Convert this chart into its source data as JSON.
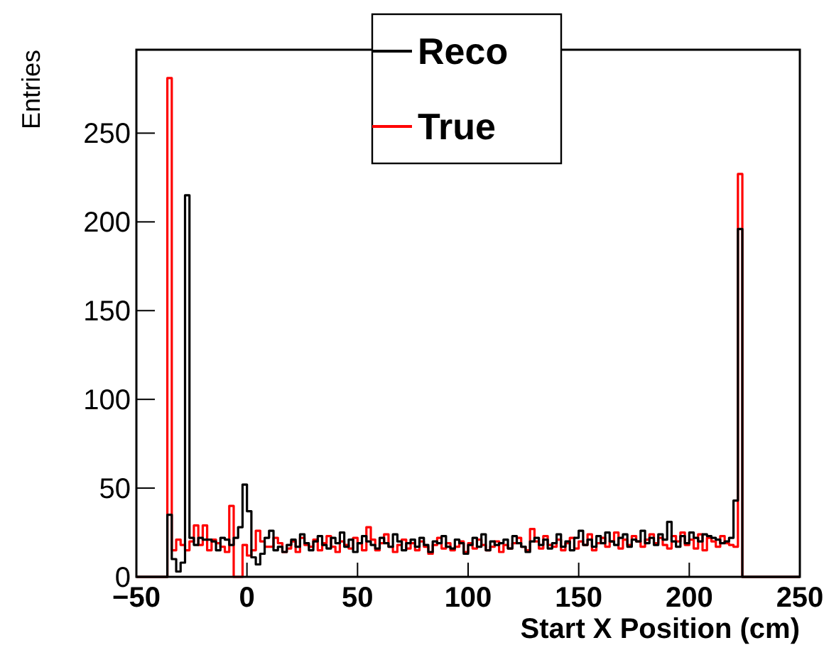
{
  "chart_data": {
    "type": "histogram",
    "xlabel": "Start X Position (cm)",
    "ylabel": "Entries",
    "bins": [
      -50,
      -48,
      -46,
      -44,
      -42,
      -40,
      -38,
      -36,
      -34,
      -32,
      -30,
      -28,
      -26,
      -24,
      -22,
      -20,
      -18,
      -16,
      -14,
      -12,
      -10,
      -8,
      -6,
      -4,
      -2,
      0,
      2,
      4,
      6,
      8,
      10,
      12,
      14,
      16,
      18,
      20,
      22,
      24,
      26,
      28,
      30,
      32,
      34,
      36,
      38,
      40,
      42,
      44,
      46,
      48,
      50,
      52,
      54,
      56,
      58,
      60,
      62,
      64,
      66,
      68,
      70,
      72,
      74,
      76,
      78,
      80,
      82,
      84,
      86,
      88,
      90,
      92,
      94,
      96,
      98,
      100,
      102,
      104,
      106,
      108,
      110,
      112,
      114,
      116,
      118,
      120,
      122,
      124,
      126,
      128,
      130,
      132,
      134,
      136,
      138,
      140,
      142,
      144,
      146,
      148,
      150,
      152,
      154,
      156,
      158,
      160,
      162,
      164,
      166,
      168,
      170,
      172,
      174,
      176,
      178,
      180,
      182,
      184,
      186,
      188,
      190,
      192,
      194,
      196,
      198,
      200,
      202,
      204,
      206,
      208,
      210,
      212,
      214,
      216,
      218,
      220,
      222,
      224,
      226,
      228,
      230,
      232,
      234,
      236,
      238,
      240,
      242,
      244,
      246,
      248,
      250
    ],
    "series": [
      {
        "name": "Reco",
        "color": "#000000",
        "values": [
          0,
          0,
          0,
          0,
          0,
          0,
          0,
          35,
          10,
          3,
          8,
          215,
          22,
          18,
          22,
          21,
          21,
          20,
          15,
          22,
          21,
          18,
          22,
          28,
          52,
          37,
          11,
          7,
          13,
          22,
          26,
          15,
          17,
          14,
          18,
          21,
          17,
          24,
          19,
          15,
          20,
          23,
          18,
          16,
          22,
          19,
          25,
          17,
          21,
          14,
          19,
          23,
          20,
          18,
          16,
          22,
          19,
          17,
          24,
          20,
          15,
          19,
          21,
          17,
          22,
          18,
          14,
          20,
          19,
          23,
          17,
          16,
          21,
          19,
          13,
          18,
          22,
          17,
          24,
          15,
          20,
          18,
          19,
          21,
          16,
          23,
          19,
          17,
          14,
          20,
          22,
          18,
          21,
          16,
          19,
          24,
          17,
          20,
          15,
          22,
          26,
          18,
          21,
          17,
          23,
          19,
          25,
          20,
          18,
          22,
          24,
          17,
          21,
          20,
          26,
          19,
          22,
          18,
          24,
          21,
          31,
          20,
          17,
          23,
          19,
          25,
          22,
          20,
          24,
          23,
          22,
          21,
          19,
          20,
          22,
          43,
          196,
          0,
          0,
          0,
          0,
          0,
          0,
          0,
          0,
          0,
          0,
          0,
          0,
          0
        ]
      },
      {
        "name": "True",
        "color": "#ff0000",
        "values": [
          0,
          0,
          0,
          0,
          0,
          0,
          0,
          281,
          15,
          21,
          18,
          15,
          20,
          29,
          18,
          29,
          15,
          21,
          19,
          17,
          14,
          40,
          0,
          0,
          18,
          12,
          15,
          26,
          20,
          17,
          17,
          22,
          19,
          14,
          16,
          20,
          14,
          22,
          18,
          17,
          21,
          15,
          19,
          23,
          17,
          14,
          20,
          18,
          16,
          22,
          19,
          15,
          28,
          21,
          15,
          19,
          24,
          17,
          14,
          18,
          21,
          16,
          19,
          15,
          20,
          17,
          13,
          18,
          22,
          16,
          19,
          15,
          17,
          20,
          14,
          19,
          16,
          21,
          18,
          15,
          17,
          20,
          14,
          18,
          16,
          19,
          22,
          17,
          15,
          27,
          20,
          16,
          23,
          18,
          17,
          21,
          15,
          19,
          22,
          16,
          20,
          18,
          24,
          15,
          19,
          22,
          17,
          20,
          25,
          16,
          21,
          18,
          23,
          20,
          17,
          21,
          24,
          19,
          22,
          18,
          16,
          23,
          20,
          25,
          18,
          21,
          16,
          24,
          15,
          22,
          20,
          17,
          23,
          19,
          18,
          17,
          227,
          0,
          0,
          0,
          0,
          0,
          0,
          0,
          0,
          0,
          0,
          0,
          0,
          0
        ]
      }
    ],
    "xlim": [
      -50,
      250
    ],
    "xticks": [
      -50,
      0,
      50,
      100,
      150,
      200,
      250
    ],
    "ylim": [
      0,
      297
    ],
    "yticks": [
      0,
      50,
      100,
      150,
      200,
      250
    ],
    "legend": "top",
    "grid": false
  }
}
